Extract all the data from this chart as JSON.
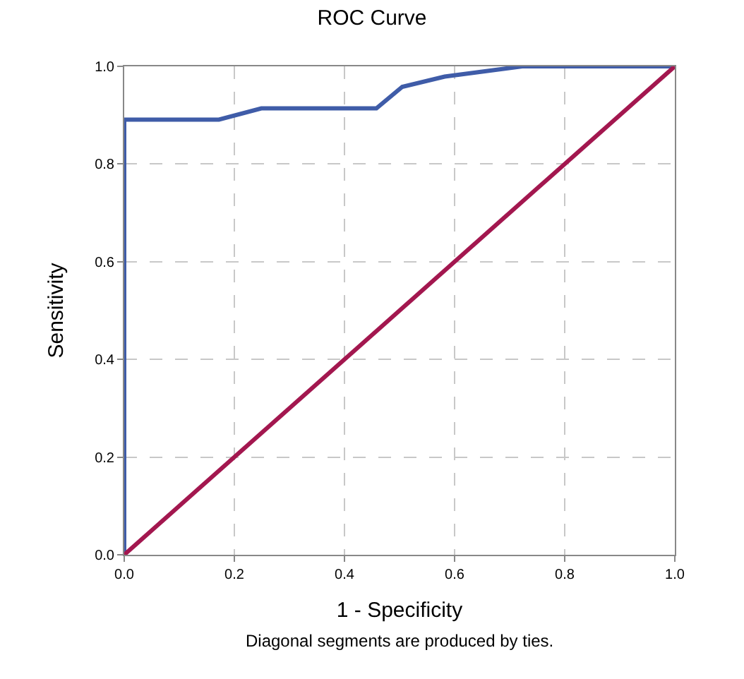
{
  "chart_data": {
    "type": "line",
    "title": "ROC Curve",
    "xlabel": "1 - Specificity",
    "ylabel": "Sensitivity",
    "series": [
      {
        "x": [
          0,
          0,
          0.172,
          0.249,
          0.458,
          0.505,
          0.582,
          0.723,
          1
        ],
        "values": [
          0,
          0.891,
          0.891,
          0.914,
          0.914,
          0.958,
          0.979,
          1,
          1
        ],
        "color": "#3f5ca8"
      },
      {
        "x": [
          0,
          1
        ],
        "values": [
          0,
          1
        ],
        "color": "#a3174f"
      }
    ],
    "xlim": [
      0,
      1
    ],
    "ylim": [
      0,
      1
    ],
    "xticks": [
      {
        "value": 0,
        "label": "0.0"
      },
      0.2,
      0.4,
      0.6,
      0.8,
      {
        "value": 1,
        "label": "1.0"
      }
    ],
    "yticks": [
      {
        "value": 0,
        "label": "0.0"
      },
      0.2,
      0.4,
      0.6,
      0.8,
      {
        "value": 1,
        "label": "1.0"
      }
    ],
    "grid": true,
    "line_style": "solid",
    "marker": "none",
    "annotations": [
      "Diagonal segments are produced by ties."
    ]
  }
}
